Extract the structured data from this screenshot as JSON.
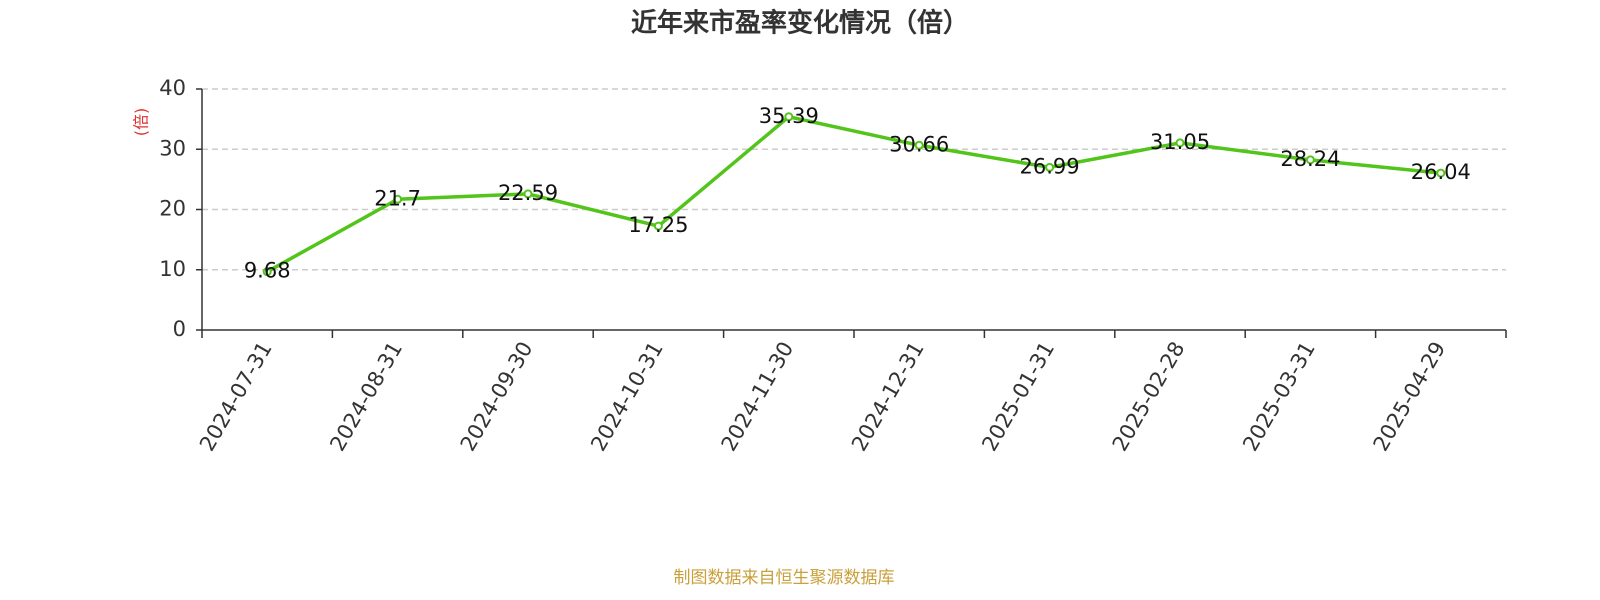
{
  "chart_data": {
    "type": "line",
    "title": "近年来市盈率变化情况（倍）",
    "y_label": "(倍)",
    "source": "制图数据来自恒生聚源数据库",
    "categories": [
      "2024-07-31",
      "2024-08-31",
      "2024-09-30",
      "2024-10-31",
      "2024-11-30",
      "2024-12-31",
      "2025-01-31",
      "2025-02-28",
      "2025-03-31",
      "2025-04-29"
    ],
    "values": [
      9.68,
      21.7,
      22.59,
      17.25,
      35.39,
      30.66,
      26.99,
      31.05,
      28.24,
      26.04
    ],
    "color": "#52c41a",
    "ylim": [
      0,
      40
    ],
    "yticks": [
      0,
      10,
      20,
      30,
      40
    ],
    "grid": true
  }
}
